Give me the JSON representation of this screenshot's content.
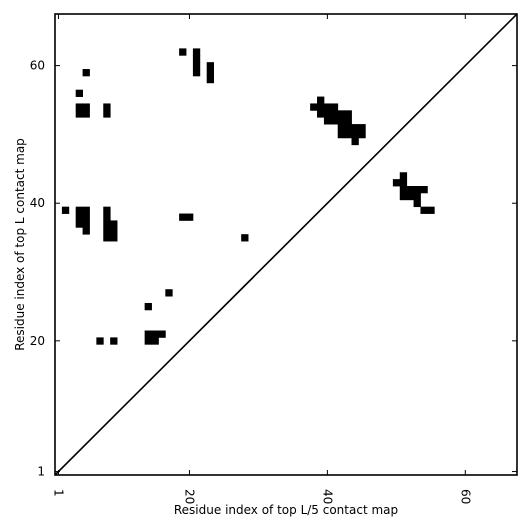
{
  "chart_data": {
    "type": "heatmap",
    "title": "",
    "xlabel": "Residue index of top L/5 contact map",
    "ylabel": "Residue index of top L contact map",
    "xlim": [
      0.5,
      67.5
    ],
    "ylim": [
      0.5,
      67.5
    ],
    "xticks": [
      1,
      20,
      40,
      60
    ],
    "yticks": [
      1,
      20,
      40,
      60
    ],
    "diagonal": true,
    "cells": [
      {
        "x": 2,
        "y": 39
      },
      {
        "x": 5,
        "y": 59
      },
      {
        "x": 4,
        "y": 56
      },
      {
        "x": 4,
        "y": 54
      },
      {
        "x": 5,
        "y": 54
      },
      {
        "x": 4,
        "y": 53
      },
      {
        "x": 5,
        "y": 53
      },
      {
        "x": 8,
        "y": 54
      },
      {
        "x": 8,
        "y": 53
      },
      {
        "x": 4,
        "y": 39
      },
      {
        "x": 5,
        "y": 39
      },
      {
        "x": 4,
        "y": 38
      },
      {
        "x": 5,
        "y": 38
      },
      {
        "x": 4,
        "y": 37
      },
      {
        "x": 5,
        "y": 37
      },
      {
        "x": 5,
        "y": 36
      },
      {
        "x": 8,
        "y": 39
      },
      {
        "x": 8,
        "y": 38
      },
      {
        "x": 8,
        "y": 37
      },
      {
        "x": 9,
        "y": 37
      },
      {
        "x": 8,
        "y": 36
      },
      {
        "x": 9,
        "y": 36
      },
      {
        "x": 8,
        "y": 35
      },
      {
        "x": 9,
        "y": 35
      },
      {
        "x": 7,
        "y": 20
      },
      {
        "x": 9,
        "y": 20
      },
      {
        "x": 14,
        "y": 21
      },
      {
        "x": 15,
        "y": 21
      },
      {
        "x": 16,
        "y": 21
      },
      {
        "x": 14,
        "y": 20
      },
      {
        "x": 15,
        "y": 20
      },
      {
        "x": 14,
        "y": 25
      },
      {
        "x": 17,
        "y": 27
      },
      {
        "x": 19,
        "y": 38
      },
      {
        "x": 20,
        "y": 38
      },
      {
        "x": 19,
        "y": 62
      },
      {
        "x": 21,
        "y": 62
      },
      {
        "x": 21,
        "y": 61
      },
      {
        "x": 21,
        "y": 60
      },
      {
        "x": 21,
        "y": 59
      },
      {
        "x": 23,
        "y": 60
      },
      {
        "x": 23,
        "y": 59
      },
      {
        "x": 23,
        "y": 58
      },
      {
        "x": 28,
        "y": 35
      },
      {
        "x": 38,
        "y": 54
      },
      {
        "x": 39,
        "y": 55
      },
      {
        "x": 39,
        "y": 54
      },
      {
        "x": 40,
        "y": 54
      },
      {
        "x": 41,
        "y": 54
      },
      {
        "x": 39,
        "y": 53
      },
      {
        "x": 40,
        "y": 53
      },
      {
        "x": 41,
        "y": 53
      },
      {
        "x": 42,
        "y": 53
      },
      {
        "x": 43,
        "y": 53
      },
      {
        "x": 40,
        "y": 52
      },
      {
        "x": 41,
        "y": 52
      },
      {
        "x": 42,
        "y": 52
      },
      {
        "x": 43,
        "y": 52
      },
      {
        "x": 42,
        "y": 51
      },
      {
        "x": 43,
        "y": 51
      },
      {
        "x": 44,
        "y": 51
      },
      {
        "x": 45,
        "y": 51
      },
      {
        "x": 42,
        "y": 50
      },
      {
        "x": 43,
        "y": 50
      },
      {
        "x": 44,
        "y": 50
      },
      {
        "x": 45,
        "y": 50
      },
      {
        "x": 44,
        "y": 49
      },
      {
        "x": 50,
        "y": 43
      },
      {
        "x": 51,
        "y": 44
      },
      {
        "x": 51,
        "y": 43
      },
      {
        "x": 51,
        "y": 42
      },
      {
        "x": 52,
        "y": 42
      },
      {
        "x": 53,
        "y": 42
      },
      {
        "x": 54,
        "y": 42
      },
      {
        "x": 51,
        "y": 41
      },
      {
        "x": 52,
        "y": 41
      },
      {
        "x": 53,
        "y": 41
      },
      {
        "x": 53,
        "y": 40
      },
      {
        "x": 54,
        "y": 39
      },
      {
        "x": 55,
        "y": 39
      }
    ]
  }
}
